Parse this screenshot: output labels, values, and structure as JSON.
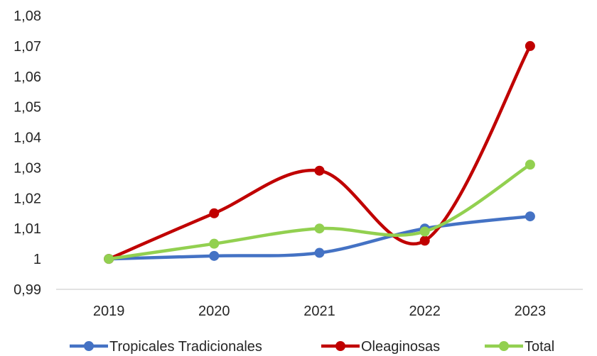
{
  "chart_data": {
    "type": "line",
    "title": "",
    "xlabel": "",
    "ylabel": "",
    "categories": [
      "2019",
      "2020",
      "2021",
      "2022",
      "2023"
    ],
    "ylim": [
      0.99,
      1.08
    ],
    "yticks": [
      0.99,
      1,
      1.01,
      1.02,
      1.03,
      1.04,
      1.05,
      1.06,
      1.07,
      1.08
    ],
    "ytick_labels": [
      "0,99",
      "1",
      "1,01",
      "1,02",
      "1,03",
      "1,04",
      "1,05",
      "1,06",
      "1,07",
      "1,08"
    ],
    "grid": false,
    "smooth": true,
    "legend_position": "bottom",
    "series": [
      {
        "name": "Tropicales Tradicionales",
        "color": "#4472C4",
        "values": [
          1.0,
          1.001,
          1.002,
          1.01,
          1.014
        ]
      },
      {
        "name": "Oleaginosas",
        "color": "#C00000",
        "values": [
          1.0,
          1.015,
          1.029,
          1.006,
          1.07
        ]
      },
      {
        "name": "Total",
        "color": "#92D050",
        "values": [
          1.0,
          1.005,
          1.01,
          1.009,
          1.031
        ]
      }
    ]
  }
}
